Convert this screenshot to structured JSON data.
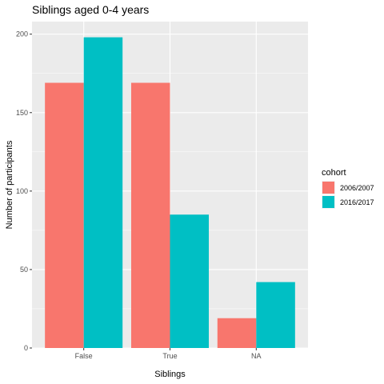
{
  "chart_data": {
    "type": "bar",
    "title": "Siblings aged 0-4 years",
    "xlabel": "Siblings",
    "ylabel": "Number of participants",
    "categories": [
      "False",
      "True",
      "NA"
    ],
    "series": [
      {
        "name": "2006/2007",
        "values": [
          169,
          169,
          19
        ],
        "color": "#F8766D"
      },
      {
        "name": "2016/2017",
        "values": [
          198,
          85,
          42
        ],
        "color": "#00BFC4"
      }
    ],
    "ylim": [
      0,
      208
    ],
    "yticks": [
      0,
      50,
      100,
      150,
      200
    ],
    "ytick_labels": [
      "0",
      "50",
      "100",
      "150",
      "200"
    ],
    "grid": true,
    "legend": {
      "title": "cohort",
      "position": "right"
    },
    "panel_background": "#EBEBEB",
    "grid_color": "#FFFFFF"
  }
}
